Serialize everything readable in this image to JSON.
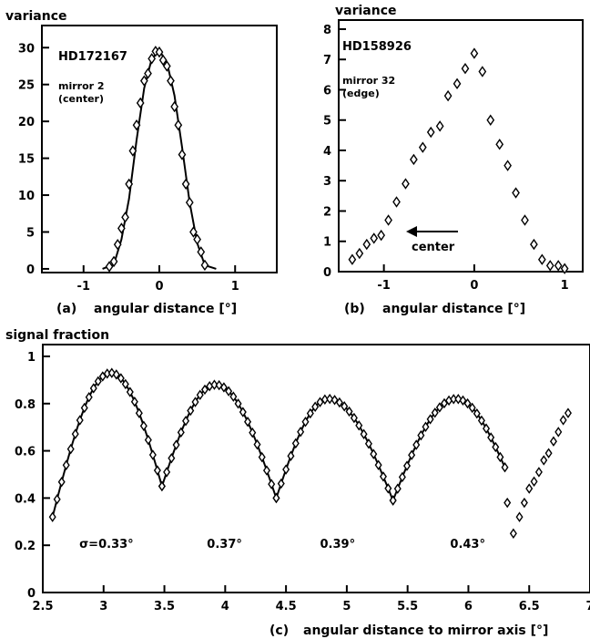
{
  "chart_data": [
    {
      "panel": "a",
      "type": "scatter",
      "caption_letter": "(a)",
      "ylabel": "variance",
      "xlabel": "angular distance [°]",
      "xlim": [
        -1.55,
        1.55
      ],
      "ylim": [
        -0.5,
        33
      ],
      "xticks": [
        -1,
        0,
        1
      ],
      "yticks": [
        0,
        5,
        10,
        15,
        20,
        25,
        30
      ],
      "annotations": {
        "star": "HD172167",
        "mirror": "mirror 2",
        "position": "(center)"
      },
      "points": {
        "x": [
          -0.66,
          -0.6,
          -0.55,
          -0.5,
          -0.45,
          -0.4,
          -0.35,
          -0.3,
          -0.25,
          -0.2,
          -0.15,
          -0.1,
          -0.05,
          0.0,
          0.05,
          0.1,
          0.15,
          0.2,
          0.25,
          0.3,
          0.35,
          0.4,
          0.45,
          0.5,
          0.55,
          0.6
        ],
        "y": [
          0.3,
          1.0,
          3.3,
          5.5,
          7.0,
          11.5,
          16.0,
          19.5,
          22.5,
          25.5,
          26.5,
          28.5,
          29.5,
          29.4,
          28.3,
          27.5,
          25.5,
          22.0,
          19.5,
          15.5,
          11.5,
          9.0,
          5.0,
          4.0,
          2.3,
          0.5
        ]
      },
      "curve": {
        "x": [
          -0.75,
          -0.6,
          -0.5,
          -0.4,
          -0.3,
          -0.2,
          -0.1,
          0.0,
          0.1,
          0.2,
          0.3,
          0.4,
          0.5,
          0.6,
          0.75
        ],
        "y": [
          0,
          0.6,
          4.0,
          9.5,
          17.5,
          24.5,
          28.5,
          29.6,
          28.0,
          23.5,
          16.5,
          9.0,
          3.5,
          0.5,
          0
        ]
      }
    },
    {
      "panel": "b",
      "type": "scatter",
      "caption_letter": "(b)",
      "ylabel": "variance",
      "xlabel": "angular distance [°]",
      "xlim": [
        -1.5,
        1.2
      ],
      "ylim": [
        0,
        8.3
      ],
      "xticks": [
        -1,
        0,
        1
      ],
      "yticks": [
        0,
        1,
        2,
        3,
        4,
        5,
        6,
        7,
        8
      ],
      "annotations": {
        "star": "HD158926",
        "mirror": "mirror 32",
        "position": "(edge)",
        "arrow_label": "center"
      },
      "points": {
        "x": [
          -1.35,
          -1.27,
          -1.19,
          -1.11,
          -1.03,
          -0.95,
          -0.86,
          -0.76,
          -0.67,
          -0.57,
          -0.48,
          -0.38,
          -0.29,
          -0.19,
          -0.1,
          0.0,
          0.09,
          0.18,
          0.28,
          0.37,
          0.46,
          0.56,
          0.66,
          0.75,
          0.84,
          0.93,
          1.0
        ],
        "y": [
          0.4,
          0.6,
          0.9,
          1.1,
          1.2,
          1.7,
          2.3,
          2.9,
          3.7,
          4.1,
          4.6,
          4.8,
          5.8,
          6.2,
          6.7,
          7.2,
          6.6,
          5.0,
          4.2,
          3.5,
          2.6,
          1.7,
          0.9,
          0.4,
          0.2,
          0.2,
          0.1
        ]
      }
    },
    {
      "panel": "c",
      "type": "scatter",
      "caption_letter": "(c)",
      "ylabel": "signal fraction",
      "xlabel": "angular distance to mirror axis [°]",
      "xlim": [
        2.5,
        7
      ],
      "ylim": [
        0,
        1.05
      ],
      "xticks": [
        2.5,
        3,
        3.5,
        4,
        4.5,
        5,
        5.5,
        6,
        6.5,
        7
      ],
      "yticks": [
        0,
        0.2,
        0.4,
        0.6,
        0.8,
        1
      ],
      "sigma_labels": [
        "σ=0.33°",
        "0.37°",
        "0.39°",
        "0.43°"
      ],
      "sigma_label_x": [
        2.8,
        3.85,
        4.78,
        5.85
      ],
      "scans": [
        {
          "x_min": 2.58,
          "x_peak": 3.06,
          "x_max": 3.48,
          "y_start": 0.32,
          "y_peak": 0.93,
          "y_end": 0.45
        },
        {
          "x_min": 3.48,
          "x_peak": 3.92,
          "x_max": 4.42,
          "y_start": 0.45,
          "y_peak": 0.88,
          "y_end": 0.4
        },
        {
          "x_min": 4.42,
          "x_peak": 4.85,
          "x_max": 5.38,
          "y_start": 0.4,
          "y_peak": 0.82,
          "y_end": 0.39
        },
        {
          "x_min": 5.38,
          "x_peak": 5.9,
          "x_max": 6.3,
          "y_start": 0.39,
          "y_peak": 0.82,
          "y_end": 0.53
        }
      ],
      "tail_points": {
        "x": [
          6.32,
          6.37,
          6.42,
          6.46,
          6.5,
          6.54,
          6.58,
          6.62,
          6.66,
          6.7,
          6.74,
          6.78,
          6.82
        ],
        "y": [
          0.38,
          0.25,
          0.32,
          0.38,
          0.44,
          0.47,
          0.51,
          0.56,
          0.59,
          0.64,
          0.68,
          0.73,
          0.76
        ]
      }
    }
  ]
}
